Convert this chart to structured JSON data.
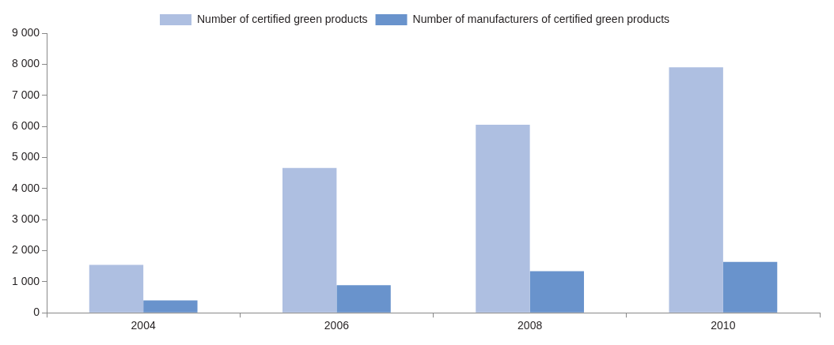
{
  "chart_data": {
    "type": "bar",
    "categories": [
      "2004",
      "2006",
      "2008",
      "2010"
    ],
    "series": [
      {
        "name": "Number of certified green products",
        "color": "#aebfe1",
        "values": [
          1540,
          4660,
          6050,
          7900
        ]
      },
      {
        "name": "Number of manufacturers of certified green products",
        "color": "#6993cc",
        "values": [
          400,
          890,
          1340,
          1640
        ]
      }
    ],
    "ylim": [
      0,
      9000
    ],
    "yticks": [
      0,
      {
        "value": 1000,
        "label": "1 000"
      },
      {
        "value": 2000,
        "label": "2 000"
      },
      {
        "value": 3000,
        "label": "3 000"
      },
      {
        "value": 4000,
        "label": "4 000"
      },
      {
        "value": 5000,
        "label": "5 000"
      },
      {
        "value": 6000,
        "label": "6 000"
      },
      {
        "value": 7000,
        "label": "7 000"
      },
      {
        "value": 8000,
        "label": "8 000"
      },
      {
        "value": 9000,
        "label": "9 000"
      }
    ],
    "grid": false,
    "legend": "top"
  }
}
